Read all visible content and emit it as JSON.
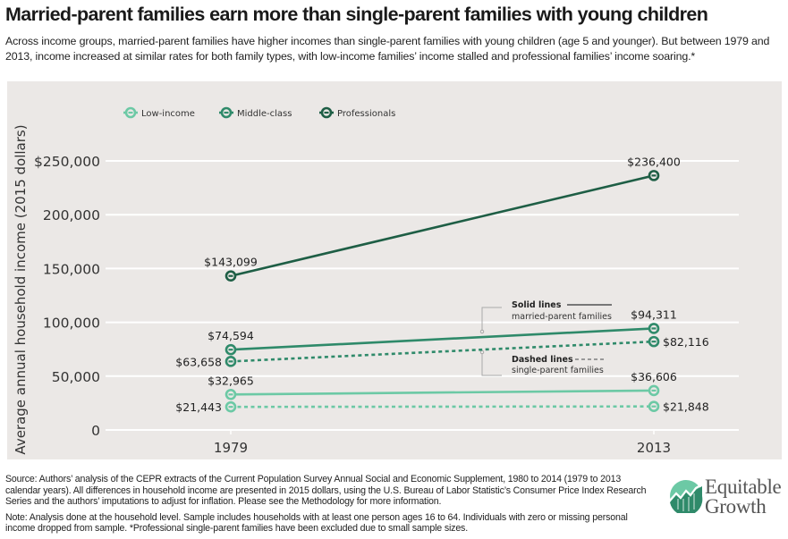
{
  "header": {
    "title": "Married-parent families earn more than single-parent families with young children",
    "subtitle": "Across income groups, married-parent families have higher incomes than single-parent families with young children (age 5 and younger). But between 1979 and 2013, income increased at similar rates for both family types, with low-income families’ income stalled and professional families’ income soaring.*"
  },
  "colors": {
    "panel_bg": "#ebe8e6",
    "low_income": "#6cc9a5",
    "middle_class": "#2f8a6a",
    "professionals": "#1e5e45",
    "gridline": "#ffffff",
    "annotation": "#8a8a8a"
  },
  "chart_data": {
    "type": "line",
    "title": "Married-parent families earn more than single-parent families with young children",
    "xlabel": "",
    "ylabel": "Average annual household income (2015 dollars)",
    "x": [
      "1979",
      "2013"
    ],
    "ylim": [
      0,
      250000
    ],
    "yticks": [
      0,
      50000,
      100000,
      150000,
      200000,
      250000
    ],
    "ytick_labels": [
      "0",
      "50,000",
      "100,000",
      "150,000",
      "200,000",
      "$250,000"
    ],
    "grid": true,
    "legend": {
      "position": "top-left",
      "entries": [
        "Low-income",
        "Middle-class",
        "Professionals"
      ]
    },
    "series": [
      {
        "name": "Professionals",
        "family": "married-parent",
        "style": "solid",
        "color_key": "professionals",
        "values": [
          143099,
          236400
        ],
        "labels": [
          "$143,099",
          "$236,400"
        ]
      },
      {
        "name": "Middle-class",
        "family": "married-parent",
        "style": "solid",
        "color_key": "middle_class",
        "values": [
          74594,
          94311
        ],
        "labels": [
          "$74,594",
          "$94,311"
        ]
      },
      {
        "name": "Middle-class",
        "family": "single-parent",
        "style": "dashed",
        "color_key": "middle_class",
        "values": [
          63658,
          82116
        ],
        "labels": [
          "$63,658",
          "$82,116"
        ]
      },
      {
        "name": "Low-income",
        "family": "married-parent",
        "style": "solid",
        "color_key": "low_income",
        "values": [
          32965,
          36606
        ],
        "labels": [
          "$32,965",
          "$36,606"
        ]
      },
      {
        "name": "Low-income",
        "family": "single-parent",
        "style": "dashed",
        "color_key": "low_income",
        "values": [
          21443,
          21848
        ],
        "labels": [
          "$21,443",
          "$21,848"
        ]
      }
    ],
    "annotations": [
      {
        "title": "Solid lines",
        "text": "married-parent families",
        "style": "solid"
      },
      {
        "title": "Dashed lines",
        "text": "single-parent families",
        "style": "dashed"
      }
    ]
  },
  "footer": {
    "source": "Source: Authors’ analysis of the CEPR extracts of the Current Population Survey Annual Social and Economic Supplement, 1980 to 2014 (1979 to 2013 calendar years). All differences in household income are presented in 2015 dollars, using the U.S. Bureau of Labor Statistic’s Consumer Price Index Research Series and the authors’ imputations to adjust for inflation. Please see the Methodology for more information.",
    "note": "Note: Analysis done at the household level. Sample includes households with at least one person ages 16 to 64. Individuals with zero or missing personal income dropped from sample. *Professional single-parent families have been excluded due to small sample sizes."
  },
  "logo": {
    "line1": "Equitable",
    "line2": "Growth"
  }
}
